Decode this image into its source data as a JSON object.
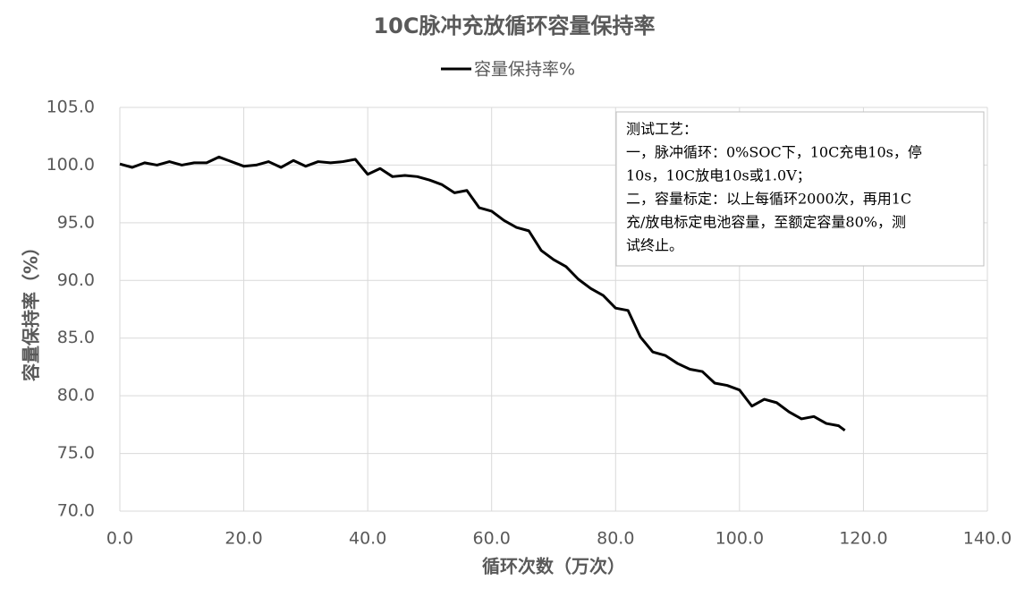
{
  "chart_data": {
    "type": "line",
    "title": "10C脉冲充放循环容量保持率",
    "x_label": "循环次数（万次）",
    "y_label": "容量保持率（%）",
    "x": [
      0,
      2,
      4,
      6,
      8,
      10,
      12,
      14,
      16,
      18,
      20,
      22,
      24,
      26,
      28,
      30,
      32,
      34,
      36,
      38,
      40,
      42,
      44,
      46,
      48,
      50,
      52,
      54,
      56,
      58,
      60,
      62,
      64,
      66,
      68,
      70,
      72,
      74,
      76,
      78,
      80,
      82,
      84,
      86,
      88,
      90,
      92,
      94,
      96,
      98,
      100,
      102,
      104,
      106,
      108,
      110,
      112,
      114,
      116,
      117
    ],
    "series": [
      {
        "name": "容量保持率%",
        "color": "#000000",
        "values": [
          100.1,
          99.8,
          100.2,
          100.0,
          100.3,
          100.0,
          100.2,
          100.2,
          100.7,
          100.3,
          99.9,
          100.0,
          100.3,
          99.8,
          100.4,
          99.9,
          100.3,
          100.2,
          100.3,
          100.5,
          99.2,
          99.7,
          99.0,
          99.1,
          99.0,
          98.7,
          98.3,
          97.6,
          97.8,
          96.3,
          96.0,
          95.2,
          94.6,
          94.3,
          92.6,
          91.8,
          91.2,
          90.1,
          89.3,
          88.7,
          87.6,
          87.4,
          85.1,
          83.8,
          83.5,
          82.8,
          82.3,
          82.1,
          81.1,
          80.9,
          80.5,
          79.1,
          79.7,
          79.4,
          78.6,
          78.0,
          78.2,
          77.6,
          77.4,
          77.0
        ]
      }
    ],
    "xlim": [
      0,
      140
    ],
    "xticks": [
      {
        "value": 0,
        "label": "0.0"
      },
      {
        "value": 20,
        "label": "20.0"
      },
      {
        "value": 40,
        "label": "40.0"
      },
      {
        "value": 60,
        "label": "60.0"
      },
      {
        "value": 80,
        "label": "80.0"
      },
      {
        "value": 100,
        "label": "100.0"
      },
      {
        "value": 120,
        "label": "120.0"
      },
      {
        "value": 140,
        "label": "140.0"
      }
    ],
    "ylim": [
      70,
      105
    ],
    "yticks": [
      {
        "value": 70,
        "label": "70.0"
      },
      {
        "value": 75,
        "label": "75.0"
      },
      {
        "value": 80,
        "label": "80.0"
      },
      {
        "value": 85,
        "label": "85.0"
      },
      {
        "value": 90,
        "label": "90.0"
      },
      {
        "value": 95,
        "label": "95.0"
      },
      {
        "value": 100,
        "label": "100.0"
      },
      {
        "value": 105,
        "label": "105.0"
      }
    ],
    "grid": true,
    "legend": "top",
    "annotation": [
      "测试工艺：",
      "一，脉冲循环：0%SOC下，10C充电10s，停",
      "10s，10C放电10s或1.0V；",
      "二，容量标定：以上每循环2000次，再用1C",
      "充/放电标定电池容量，至额定容量80%，测",
      "试终止。"
    ]
  }
}
